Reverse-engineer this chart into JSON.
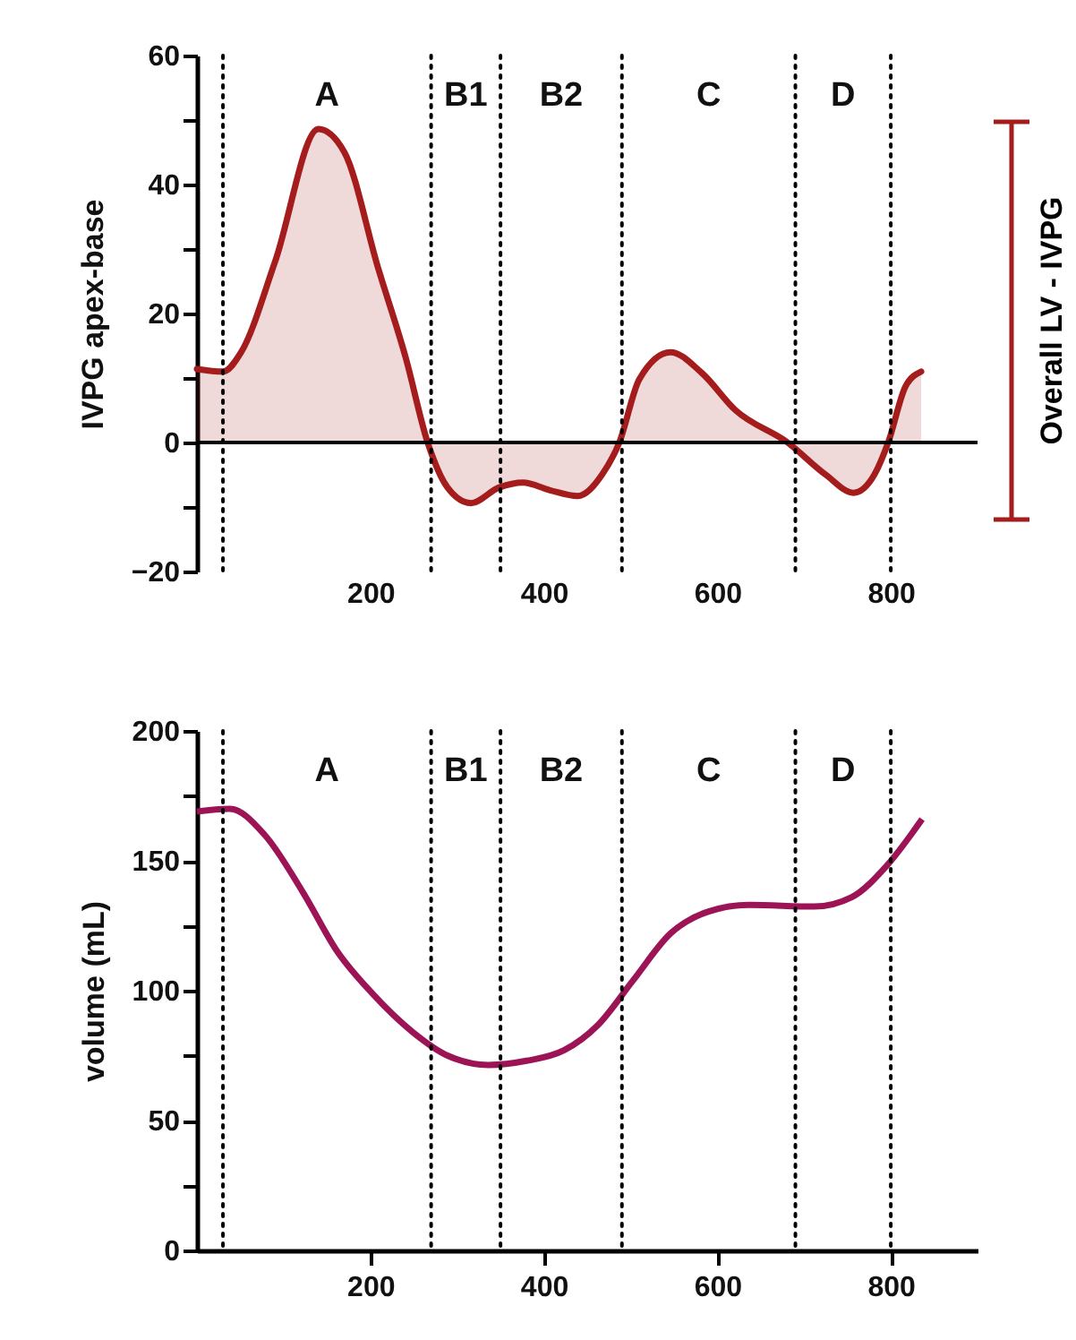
{
  "chart_data": [
    {
      "type": "area",
      "ylabel": "IVPG apex-base",
      "xlim": [
        0,
        900
      ],
      "xticks": [
        200,
        400,
        600,
        800
      ],
      "ylim": [
        -20,
        60
      ],
      "yticks": [
        -20,
        {
          "value": -10,
          "label": null
        },
        0,
        {
          "value": 10,
          "label": null
        },
        20,
        {
          "value": 30,
          "label": null
        },
        40,
        {
          "value": 50,
          "label": null
        },
        60
      ],
      "grid": false,
      "x": [
        0,
        30,
        51,
        90,
        140,
        170,
        209,
        241,
        266,
        289,
        316,
        348,
        376,
        407,
        439,
        467,
        487,
        510,
        546,
        582,
        621,
        681,
        725,
        757,
        781,
        797,
        817,
        835
      ],
      "series": [
        {
          "color": "#a51c1c",
          "values": [
            11.4,
            11,
            14,
            28,
            48.6,
            45,
            27,
            13,
            0,
            -7,
            -9.4,
            -7,
            -6.2,
            -7.4,
            -8.3,
            -5,
            0,
            9.8,
            14,
            10.8,
            5,
            0,
            -5,
            -7.8,
            -5,
            0,
            8.7,
            11
          ]
        }
      ],
      "ref_lines": [
        {
          "axis": "y",
          "value": 0,
          "color": "#000000",
          "line_style": "solid"
        },
        {
          "axis": "x",
          "value": 30,
          "color": "#000000",
          "line_style": "dotted"
        },
        {
          "axis": "x",
          "value": 270,
          "color": "#000000",
          "line_style": "dotted"
        },
        {
          "axis": "x",
          "value": 350,
          "color": "#000000",
          "line_style": "dotted"
        },
        {
          "axis": "x",
          "value": 490,
          "color": "#000000",
          "line_style": "dotted"
        },
        {
          "axis": "x",
          "value": 690,
          "color": "#000000",
          "line_style": "dotted"
        },
        {
          "axis": "x",
          "value": 800,
          "color": "#000000",
          "line_style": "dotted"
        }
      ],
      "annotations": [
        "A",
        "B1",
        "B2",
        "C",
        "D",
        "Overall LV - IVPG"
      ]
    },
    {
      "type": "line",
      "ylabel": "volume  (mL)",
      "xlim": [
        0,
        900
      ],
      "xticks": [
        200,
        400,
        600,
        800
      ],
      "ylim": [
        0,
        200
      ],
      "yticks": [
        0,
        {
          "value": 25,
          "label": null
        },
        50,
        {
          "value": 75,
          "label": null
        },
        100,
        {
          "value": 125,
          "label": null
        },
        150,
        {
          "value": 175,
          "label": null
        },
        200
      ],
      "grid": false,
      "marker": "none",
      "line_style": "solid",
      "x": [
        0,
        38,
        78,
        122,
        162,
        202,
        249,
        289,
        336,
        380,
        423,
        463,
        503,
        546,
        590,
        637,
        712,
        755,
        795,
        836
      ],
      "series": [
        {
          "color": "#9c1456",
          "values": [
            169,
            170,
            160,
            138,
            115,
            99,
            84,
            75,
            71.4,
            73,
            77,
            87,
            104,
            122,
            130.5,
            133,
            132.4,
            136,
            148,
            166
          ]
        }
      ],
      "ref_lines": [
        {
          "axis": "x",
          "value": 30,
          "color": "#000000",
          "line_style": "dotted"
        },
        {
          "axis": "x",
          "value": 270,
          "color": "#000000",
          "line_style": "dotted"
        },
        {
          "axis": "x",
          "value": 350,
          "color": "#000000",
          "line_style": "dotted"
        },
        {
          "axis": "x",
          "value": 490,
          "color": "#000000",
          "line_style": "dotted"
        },
        {
          "axis": "x",
          "value": 690,
          "color": "#000000",
          "line_style": "dotted"
        },
        {
          "axis": "x",
          "value": 800,
          "color": "#000000",
          "line_style": "dotted"
        }
      ],
      "annotations": [
        "A",
        "B1",
        "B2",
        "C",
        "D"
      ]
    }
  ]
}
